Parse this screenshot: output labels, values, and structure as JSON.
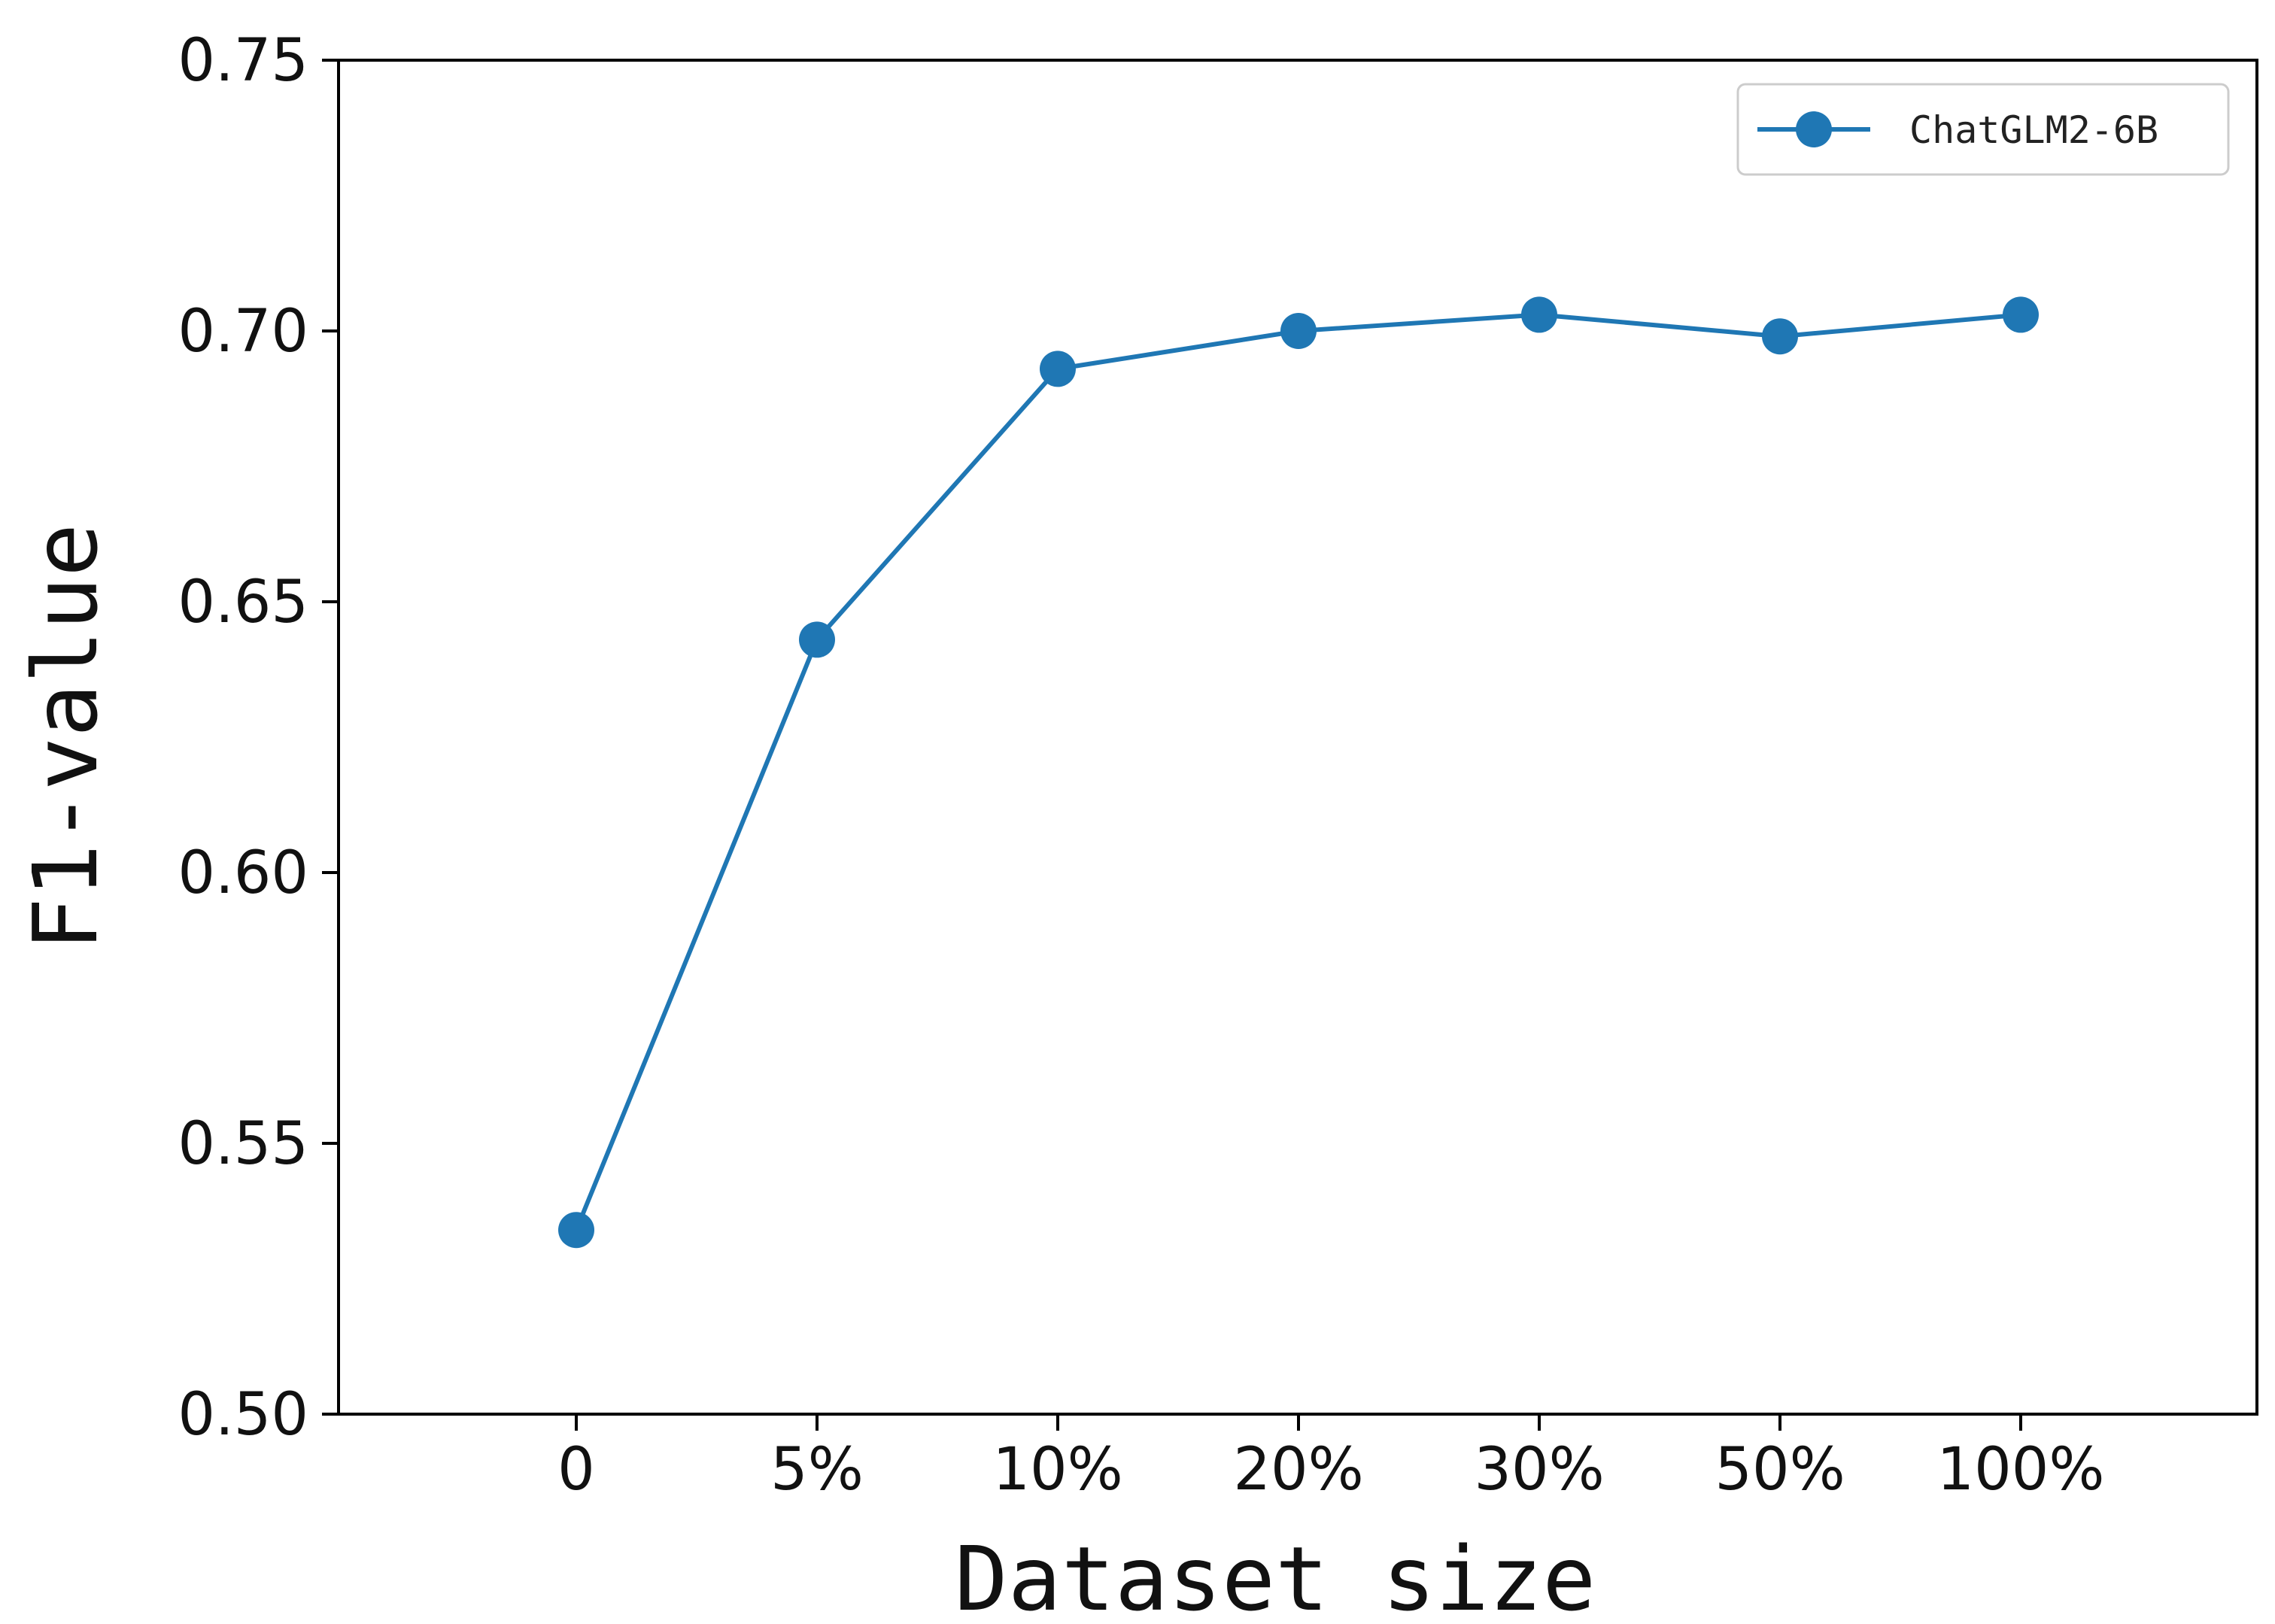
{
  "chart_data": {
    "type": "line",
    "categories": [
      "0",
      "5%",
      "10%",
      "20%",
      "30%",
      "50%",
      "100%"
    ],
    "series": [
      {
        "name": "ChatGLM2-6B",
        "values": [
          0.534,
          0.643,
          0.693,
          0.7,
          0.703,
          0.699,
          0.703
        ],
        "color": "#1f77b4",
        "marker": "circle"
      }
    ],
    "xlabel": "Dataset size",
    "ylabel": "F1-value",
    "ylim": [
      0.5,
      0.75
    ],
    "yticks": [
      "0.50",
      "0.55",
      "0.60",
      "0.65",
      "0.70",
      "0.75"
    ],
    "legend": {
      "position": "top-right",
      "entries": [
        "ChatGLM2-6B"
      ]
    },
    "grid": false
  }
}
